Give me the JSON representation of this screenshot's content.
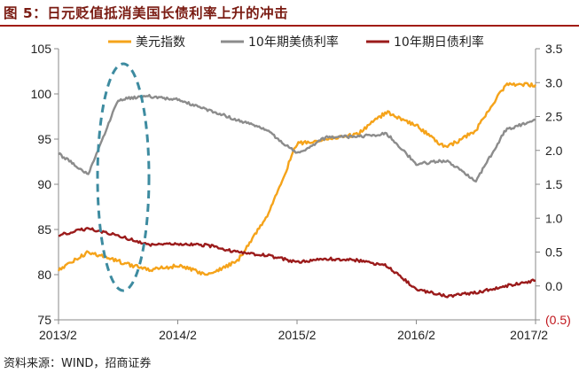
{
  "header": {
    "title": "图 5：日元贬值抵消美国长债利率上升的冲击"
  },
  "footer": {
    "source": "资料来源：WIND，招商证券"
  },
  "chart_data": {
    "type": "line",
    "title": "",
    "x_ticks": [
      "2013/2",
      "2014/2",
      "2015/2",
      "2016/2",
      "2017/2"
    ],
    "y_left": {
      "ylim": [
        75,
        105
      ],
      "ticks": [
        "75",
        "80",
        "85",
        "90",
        "95",
        "100",
        "105"
      ]
    },
    "y_right": {
      "ylim": [
        -0.5,
        3.5
      ],
      "ticks": [
        "(0.5)",
        "0.0",
        "0.5",
        "1.0",
        "1.5",
        "2.0",
        "2.5",
        "3.0",
        "3.5"
      ]
    },
    "legend_position": "top",
    "grid": false,
    "series": [
      {
        "name": "美元指数",
        "axis": "left",
        "color": "#F5A31A",
        "x": [
          "2013/2",
          "2013/5",
          "2013/8",
          "2013/11",
          "2014/2",
          "2014/5",
          "2014/8",
          "2014/11",
          "2015/2",
          "2015/5",
          "2015/8",
          "2015/11",
          "2016/2",
          "2016/5",
          "2016/8",
          "2016/11",
          "2017/2"
        ],
        "values": [
          80.5,
          82.5,
          81.5,
          80.5,
          81,
          80,
          81.5,
          86.5,
          94.5,
          95,
          95.5,
          98,
          96.5,
          94,
          96,
          101,
          101
        ]
      },
      {
        "name": "10年期美债利率",
        "axis": "right",
        "color": "#8C8C8C",
        "x": [
          "2013/2",
          "2013/5",
          "2013/8",
          "2013/11",
          "2014/2",
          "2014/5",
          "2014/8",
          "2014/11",
          "2015/2",
          "2015/5",
          "2015/8",
          "2015/11",
          "2016/2",
          "2016/5",
          "2016/8",
          "2016/11",
          "2017/2"
        ],
        "values": [
          1.95,
          1.65,
          2.75,
          2.8,
          2.75,
          2.6,
          2.45,
          2.3,
          1.95,
          2.2,
          2.2,
          2.25,
          1.8,
          1.85,
          1.55,
          2.3,
          2.45
        ]
      },
      {
        "name": "10年期日债利率",
        "axis": "right",
        "color": "#9B1B1B",
        "x": [
          "2013/2",
          "2013/5",
          "2013/8",
          "2013/11",
          "2014/2",
          "2014/5",
          "2014/8",
          "2014/11",
          "2015/2",
          "2015/5",
          "2015/8",
          "2015/11",
          "2016/2",
          "2016/5",
          "2016/8",
          "2016/11",
          "2017/2"
        ],
        "values": [
          0.75,
          0.85,
          0.75,
          0.6,
          0.62,
          0.6,
          0.5,
          0.45,
          0.35,
          0.4,
          0.38,
          0.3,
          -0.05,
          -0.15,
          -0.1,
          0.0,
          0.08
        ]
      }
    ]
  }
}
